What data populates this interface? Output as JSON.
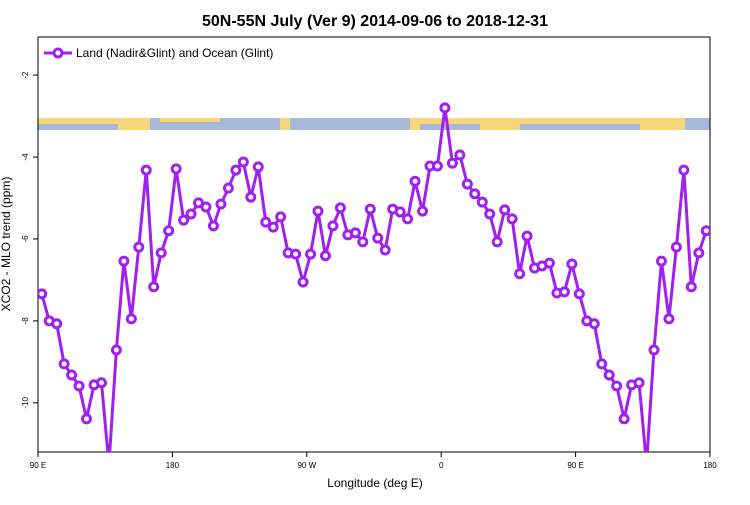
{
  "chart_data": {
    "type": "line",
    "title": "50N-55N July (Ver 9)   2014-09-06 to 2018-12-31",
    "x_label": "Longitude (deg E)",
    "y_label": "XCO2 - MLO trend (ppm)",
    "xlim": [
      90,
      540
    ],
    "ylim": [
      -11.2,
      -1.07
    ],
    "xticks": [
      {
        "value": 90,
        "label": "90 E"
      },
      {
        "value": 180,
        "label": "180"
      },
      {
        "value": 270,
        "label": "90 W"
      },
      {
        "value": 360,
        "label": "0"
      },
      {
        "value": 450,
        "label": "90 E"
      },
      {
        "value": 540,
        "label": "180"
      }
    ],
    "yticks": [
      -2,
      -4,
      -6,
      -8,
      -10
    ],
    "legend_position": "upper-left",
    "x": [
      92.5,
      97.5,
      102.5,
      107.5,
      112.5,
      117.5,
      122.5,
      127.5,
      132.5,
      137.5,
      142.5,
      147.5,
      152.5,
      157.5,
      162.5,
      167.5,
      172.5,
      177.5,
      182.5,
      187.5,
      192.5,
      197.5,
      202.5,
      207.5,
      212.5,
      217.5,
      222.5,
      227.5,
      232.5,
      237.5,
      242.5,
      247.5,
      252.5,
      257.5,
      262.5,
      267.5,
      272.5,
      277.5,
      282.5,
      287.5,
      292.5,
      297.5,
      302.5,
      307.5,
      312.5,
      317.5,
      322.5,
      327.5,
      332.5,
      337.5,
      342.5,
      347.5,
      352.5,
      357.5,
      362.5,
      367.5,
      372.5,
      377.5,
      382.5,
      387.5,
      392.5,
      397.5,
      402.5,
      407.5,
      412.5,
      417.5,
      422.5,
      427.5,
      432.5,
      437.5,
      442.5,
      447.5,
      452.5,
      457.5,
      462.5,
      467.5,
      472.5,
      477.5,
      482.5,
      487.5,
      492.5,
      497.5,
      502.5,
      507.5,
      512.5,
      517.5,
      522.5,
      527.5,
      532.5,
      537.5
    ],
    "series": [
      {
        "name": "Land (Nadir&Glint) and Ocean (Glint)",
        "color": "#a020f0",
        "values": [
          -7.34,
          -8.0,
          -8.07,
          -9.05,
          -9.32,
          -9.59,
          -10.39,
          -9.56,
          -9.51,
          -11.5,
          -8.71,
          -6.54,
          -7.95,
          -6.2,
          -4.32,
          -7.17,
          -6.34,
          -5.8,
          -4.29,
          -5.54,
          -5.39,
          -5.12,
          -5.22,
          -5.68,
          -5.15,
          -4.76,
          -4.32,
          -4.12,
          -4.98,
          -4.24,
          -5.59,
          -5.71,
          -5.46,
          -6.34,
          -6.37,
          -7.05,
          -6.37,
          -5.32,
          -6.41,
          -5.68,
          -5.24,
          -5.9,
          -5.85,
          -6.07,
          -5.27,
          -5.98,
          -6.27,
          -5.27,
          -5.34,
          -5.51,
          -4.59,
          -5.32,
          -4.22,
          -4.22,
          -2.8,
          -4.15,
          -3.95,
          -4.66,
          -4.9,
          -5.1,
          -5.39,
          -6.07,
          -5.29,
          -5.51,
          -6.85,
          -5.93,
          -6.71,
          -6.66,
          -6.59,
          -7.32,
          -7.29,
          -6.61,
          -7.34,
          -8.0,
          -8.07,
          -9.05,
          -9.32,
          -9.59,
          -10.39,
          -9.56,
          -9.51,
          -11.5,
          -8.71,
          -6.54,
          -7.95,
          -6.2,
          -4.32,
          -7.17,
          -6.34,
          -5.8
        ]
      }
    ]
  }
}
